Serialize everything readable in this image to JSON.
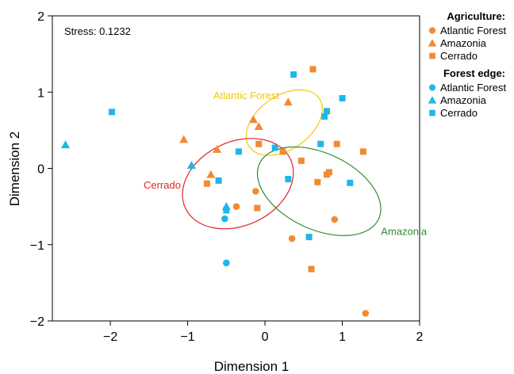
{
  "chart_data": {
    "type": "scatter",
    "xlabel": "Dimension 1",
    "ylabel": "Dimension 2",
    "xlim": [
      -2.75,
      2.0
    ],
    "ylim": [
      -2.0,
      2.0
    ],
    "xticks": [
      -2,
      -1,
      0,
      1,
      2
    ],
    "yticks": [
      -2,
      -1,
      0,
      1,
      2
    ],
    "xtick_labels": [
      "−2",
      "−1",
      "0",
      "1",
      "2"
    ],
    "ytick_labels": [
      "−2",
      "−1",
      "0",
      "1",
      "2"
    ],
    "grid": false,
    "annotation": "Stress: 0.1232",
    "legend_position": "right",
    "legend": [
      {
        "title": "Agriculture:",
        "entries": [
          {
            "label": "Atlantic Forest",
            "shape": "circle",
            "color": "#f28a32"
          },
          {
            "label": "Amazonia",
            "shape": "triangle",
            "color": "#f28a32"
          },
          {
            "label": "Cerrado",
            "shape": "square",
            "color": "#f28a32"
          }
        ]
      },
      {
        "title": "Forest edge:",
        "entries": [
          {
            "label": "Atlantic Forest",
            "shape": "circle",
            "color": "#1fb6ea"
          },
          {
            "label": "Amazonia",
            "shape": "triangle",
            "color": "#1fb6ea"
          },
          {
            "label": "Cerrado",
            "shape": "square",
            "color": "#1fb6ea"
          }
        ]
      }
    ],
    "ellipses": [
      {
        "label": "Atlantic Forest",
        "color": "#f2c80f",
        "cx": 0.25,
        "cy": 0.6,
        "rx": 0.55,
        "ry": 0.35,
        "angle_deg": -35
      },
      {
        "label": "Cerrado",
        "color": "#e3262b",
        "cx": -0.35,
        "cy": -0.2,
        "rx": 0.75,
        "ry": 0.55,
        "angle_deg": -25
      },
      {
        "label": "Amazonia",
        "color": "#2f8a2f",
        "cx": 0.7,
        "cy": -0.3,
        "rx": 0.85,
        "ry": 0.5,
        "angle_deg": 25
      }
    ],
    "series": [
      {
        "name": "Agriculture Atlantic Forest",
        "shape": "circle",
        "color": "#f28a32",
        "points": [
          [
            -0.37,
            -0.5
          ],
          [
            -0.12,
            -0.3
          ],
          [
            0.35,
            -0.92
          ],
          [
            0.9,
            -0.67
          ],
          [
            1.3,
            -1.9
          ]
        ]
      },
      {
        "name": "Agriculture Amazonia",
        "shape": "triangle",
        "color": "#f28a32",
        "points": [
          [
            -1.05,
            0.38
          ],
          [
            -0.62,
            0.25
          ],
          [
            -0.7,
            -0.08
          ],
          [
            -0.15,
            0.64
          ],
          [
            -0.08,
            0.55
          ],
          [
            0.3,
            0.87
          ]
        ]
      },
      {
        "name": "Agriculture Cerrado",
        "shape": "square",
        "color": "#f28a32",
        "points": [
          [
            -0.75,
            -0.2
          ],
          [
            -0.08,
            0.32
          ],
          [
            -0.1,
            -0.52
          ],
          [
            0.23,
            0.22
          ],
          [
            0.47,
            0.1
          ],
          [
            0.62,
            1.3
          ],
          [
            0.68,
            -0.18
          ],
          [
            0.8,
            -0.08
          ],
          [
            0.83,
            -0.05
          ],
          [
            0.93,
            0.32
          ],
          [
            1.27,
            0.22
          ],
          [
            0.6,
            -1.32
          ]
        ]
      },
      {
        "name": "Forest edge Atlantic Forest",
        "shape": "circle",
        "color": "#1fb6ea",
        "points": [
          [
            -0.52,
            -0.66
          ],
          [
            -0.5,
            -1.24
          ]
        ]
      },
      {
        "name": "Forest edge Amazonia",
        "shape": "triangle",
        "color": "#1fb6ea",
        "points": [
          [
            -2.58,
            0.31
          ],
          [
            -0.95,
            0.04
          ],
          [
            -0.5,
            -0.5
          ]
        ]
      },
      {
        "name": "Forest edge Cerrado",
        "shape": "square",
        "color": "#1fb6ea",
        "points": [
          [
            -1.98,
            0.74
          ],
          [
            -0.6,
            -0.16
          ],
          [
            -0.34,
            0.22
          ],
          [
            -0.5,
            -0.55
          ],
          [
            0.13,
            0.27
          ],
          [
            0.3,
            -0.14
          ],
          [
            0.37,
            1.23
          ],
          [
            0.57,
            -0.9
          ],
          [
            0.72,
            0.32
          ],
          [
            0.77,
            0.68
          ],
          [
            0.8,
            0.75
          ],
          [
            1.0,
            0.92
          ],
          [
            1.1,
            -0.19
          ]
        ]
      }
    ]
  }
}
